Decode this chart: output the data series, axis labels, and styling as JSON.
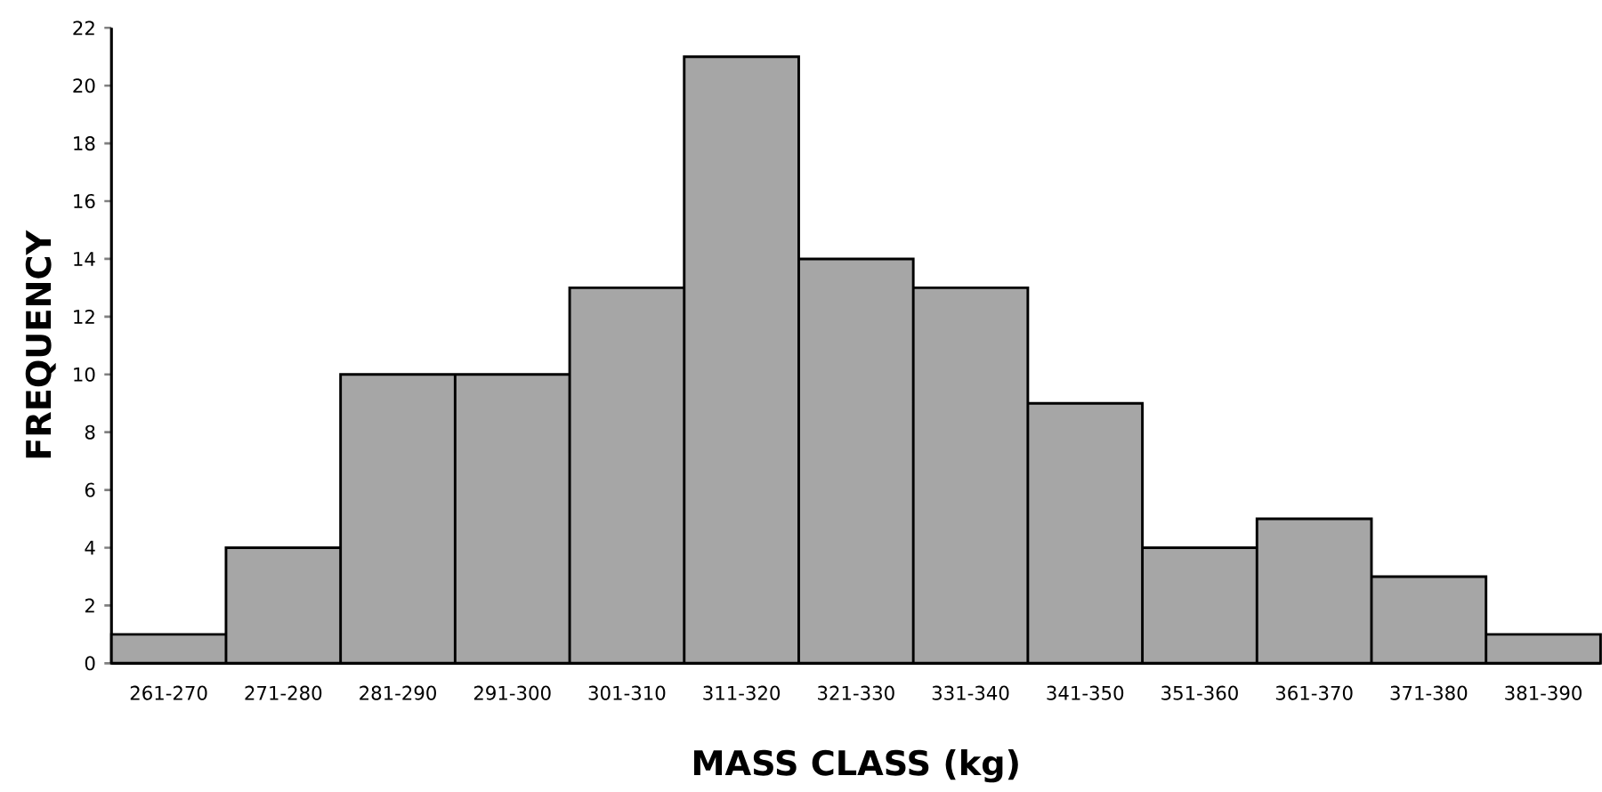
{
  "chart_data": {
    "type": "bar",
    "xlabel": "MASS  CLASS (kg)",
    "ylabel": "FREQUENCY",
    "categories": [
      "261-270",
      "271-280",
      "281-290",
      "291-300",
      "301-310",
      "311-320",
      "321-330",
      "331-340",
      "341-350",
      "351-360",
      "361-370",
      "371-380",
      "381-390"
    ],
    "values": [
      1,
      4,
      10,
      10,
      13,
      21,
      14,
      13,
      9,
      4,
      5,
      3,
      1
    ],
    "color": "#a6a6a6",
    "ylim": [
      0,
      22
    ],
    "yticks": [
      0,
      2,
      4,
      6,
      8,
      10,
      12,
      14,
      16,
      18,
      20,
      22
    ],
    "grid": false
  }
}
